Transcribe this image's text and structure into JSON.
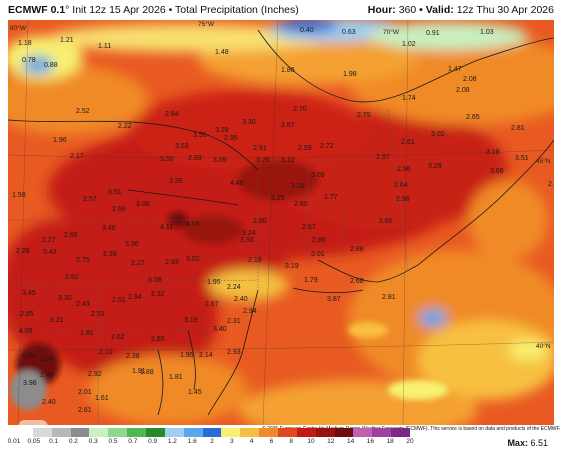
{
  "header": {
    "model": "ECMWF 0.1",
    "degree": "°",
    "run_info": "Init 12z 15 Apr 2026 • Total Precipitation (Inches)",
    "hour_label": "Hour:",
    "hour": "360",
    "valid_label": "• Valid:",
    "valid": "12z Thu 30 Apr 2026"
  },
  "copyright": "© 2026 European Centre for Medium-Range Weather Forecasts (ECMWF). This service is based on data and products of the ECMWF.",
  "legend": {
    "ticks": [
      "0.01",
      "0.05",
      "0.1",
      "0.2",
      "0.3",
      "0.5",
      "0.7",
      "0.9",
      "1.2",
      "1.6",
      "2",
      "3",
      "4",
      "6",
      "8",
      "10",
      "12",
      "14",
      "16",
      "18",
      "20"
    ],
    "colors": [
      "#ffffff",
      "#d9d9d9",
      "#b8b8b8",
      "#8c8c8c",
      "#c8f0c0",
      "#90d890",
      "#50b850",
      "#2a8a2a",
      "#9ecef0",
      "#5aa6e8",
      "#2a6ad8",
      "#f8f070",
      "#f4c040",
      "#f08a28",
      "#e04820",
      "#c41a14",
      "#9a1210",
      "#6e0c0c",
      "#c060b0",
      "#a040a0",
      "#7a2a8a"
    ]
  },
  "max": {
    "label": "Max:",
    "value": "6.51"
  },
  "coords": {
    "lat45": "45°N",
    "lat40": "40°N",
    "lon75": "75°W",
    "lon70": "70°W",
    "lon80": "80°W"
  },
  "map_values": [
    {
      "t": "1.18",
      "c": "#333"
    },
    {
      "t": "1.21",
      "c": "#333"
    },
    {
      "t": "1.11",
      "c": "#333"
    },
    {
      "t": "0.78",
      "c": "#333"
    },
    {
      "t": "0.88",
      "c": "#333"
    },
    {
      "t": "1.48",
      "c": "#333"
    },
    {
      "t": "0.40",
      "c": "#333"
    },
    {
      "t": "0.63",
      "c": "#333"
    },
    {
      "t": "1.02",
      "c": "#333"
    },
    {
      "t": "0.91",
      "c": "#333"
    },
    {
      "t": "1.03",
      "c": "#333"
    },
    {
      "t": "1.86",
      "c": "#333"
    },
    {
      "t": "1.98",
      "c": "#333"
    },
    {
      "t": "1.47",
      "c": "#333"
    },
    {
      "t": "2.08",
      "c": "#333"
    },
    {
      "t": "2.08",
      "c": "#333"
    },
    {
      "t": "1.74",
      "c": "#333"
    },
    {
      "t": "2.52",
      "c": "#333"
    },
    {
      "t": "2.84",
      "c": "#333"
    },
    {
      "t": "2.70",
      "c": "#333"
    },
    {
      "t": "2.75",
      "c": "#333"
    },
    {
      "t": "2.65",
      "c": "#333"
    },
    {
      "t": "2.22",
      "c": "#333"
    },
    {
      "t": "3.30",
      "c": "#333"
    },
    {
      "t": "2.87",
      "c": "#333"
    },
    {
      "t": "3.28",
      "c": "#333"
    },
    {
      "t": "3.55",
      "c": "#333"
    },
    {
      "t": "3.02",
      "c": "#333"
    },
    {
      "t": "2.81",
      "c": "#333"
    },
    {
      "t": "1.96",
      "c": "#333"
    },
    {
      "t": "3.53",
      "c": "#333"
    },
    {
      "t": "2.95",
      "c": "#333"
    },
    {
      "t": "2.91",
      "c": "#333"
    },
    {
      "t": "2.59",
      "c": "#333"
    },
    {
      "t": "2.72",
      "c": "#333"
    },
    {
      "t": "2.61",
      "c": "#333"
    },
    {
      "t": "2.17",
      "c": "#333"
    },
    {
      "t": "3.50",
      "c": "#333"
    },
    {
      "t": "2.99",
      "c": "#333"
    },
    {
      "t": "3.09",
      "c": "#333"
    },
    {
      "t": "3.26",
      "c": "#333"
    },
    {
      "t": "3.12",
      "c": "#333"
    },
    {
      "t": "2.97",
      "c": "#333"
    },
    {
      "t": "2.96",
      "c": "#333"
    },
    {
      "t": "3.18",
      "c": "#333"
    },
    {
      "t": "3.51",
      "c": "#333"
    },
    {
      "t": "3.29",
      "c": "#333"
    },
    {
      "t": "3.68",
      "c": "#333"
    },
    {
      "t": "3.39",
      "c": "#333"
    },
    {
      "t": "4.46",
      "c": "#333"
    },
    {
      "t": "3.09",
      "c": "#333"
    },
    {
      "t": "3.16",
      "c": "#333"
    },
    {
      "t": "2.64",
      "c": "#333"
    },
    {
      "t": "2.67",
      "c": "#333"
    },
    {
      "t": "1.58",
      "c": "#333"
    },
    {
      "t": "3.51",
      "c": "#333"
    },
    {
      "t": "2.57",
      "c": "#333"
    },
    {
      "t": "2.69",
      "c": "#333"
    },
    {
      "t": "3.06",
      "c": "#333"
    },
    {
      "t": "3.25",
      "c": "#333"
    },
    {
      "t": "2.77",
      "c": "#333"
    },
    {
      "t": "2.80",
      "c": "#333"
    },
    {
      "t": "2.98",
      "c": "#333"
    },
    {
      "t": "2.66",
      "c": "#333"
    },
    {
      "t": "3.46",
      "c": "#333"
    },
    {
      "t": "4.11",
      "c": "#333"
    },
    {
      "t": "4.06",
      "c": "#333"
    },
    {
      "t": "2.80",
      "c": "#333"
    },
    {
      "t": "3.24",
      "c": "#333"
    },
    {
      "t": "2.67",
      "c": "#333"
    },
    {
      "t": "2.65",
      "c": "#333"
    },
    {
      "t": "2.27",
      "c": "#333"
    },
    {
      "t": "3.36",
      "c": "#333"
    },
    {
      "t": "3.93",
      "c": "#333"
    },
    {
      "t": "2.86",
      "c": "#333"
    },
    {
      "t": "2.88",
      "c": "#333"
    },
    {
      "t": "2.28",
      "c": "#333"
    },
    {
      "t": "3.43",
      "c": "#333"
    },
    {
      "t": "2.75",
      "c": "#333"
    },
    {
      "t": "2.38",
      "c": "#333"
    },
    {
      "t": "2.27",
      "c": "#333"
    },
    {
      "t": "2.93",
      "c": "#333"
    },
    {
      "t": "3.02",
      "c": "#333"
    },
    {
      "t": "2.19",
      "c": "#333"
    },
    {
      "t": "3.19",
      "c": "#333"
    },
    {
      "t": "3.01",
      "c": "#333"
    },
    {
      "t": "2.82",
      "c": "#333"
    },
    {
      "t": "3.08",
      "c": "#333"
    },
    {
      "t": "1.95",
      "c": "#333"
    },
    {
      "t": "2.24",
      "c": "#333"
    },
    {
      "t": "1.79",
      "c": "#333"
    },
    {
      "t": "2.68",
      "c": "#333"
    },
    {
      "t": "3.45",
      "c": "#333"
    },
    {
      "t": "3.30",
      "c": "#333"
    },
    {
      "t": "2.43",
      "c": "#333"
    },
    {
      "t": "2.51",
      "c": "#333"
    },
    {
      "t": "2.94",
      "c": "#333"
    },
    {
      "t": "2.32",
      "c": "#333"
    },
    {
      "t": "2.40",
      "c": "#333"
    },
    {
      "t": "3.87",
      "c": "#333"
    },
    {
      "t": "2.81",
      "c": "#333"
    },
    {
      "t": "2.85",
      "c": "#333"
    },
    {
      "t": "3.21",
      "c": "#333"
    },
    {
      "t": "2.53",
      "c": "#333"
    },
    {
      "t": "3.19",
      "c": "#333"
    },
    {
      "t": "2.67",
      "c": "#333"
    },
    {
      "t": "2.94",
      "c": "#333"
    },
    {
      "t": "2.31",
      "c": "#333"
    },
    {
      "t": "4.09",
      "c": "#333"
    },
    {
      "t": "1.81",
      "c": "#333"
    },
    {
      "t": "2.62",
      "c": "#333"
    },
    {
      "t": "2.65",
      "c": "#333"
    },
    {
      "t": "3.40",
      "c": "#333"
    },
    {
      "t": "5.34",
      "c": "#333"
    },
    {
      "t": "3.00",
      "c": "#333"
    },
    {
      "t": "2.10",
      "c": "#333"
    },
    {
      "t": "2.38",
      "c": "#333"
    },
    {
      "t": "1.95",
      "c": "#333"
    },
    {
      "t": "2.14",
      "c": "#333"
    },
    {
      "t": "2.93",
      "c": "#333"
    },
    {
      "t": "2.46",
      "c": "#333"
    },
    {
      "t": "2.92",
      "c": "#333"
    },
    {
      "t": "1.91",
      "c": "#333"
    },
    {
      "t": "1.88",
      "c": "#333"
    },
    {
      "t": "1.81",
      "c": "#333"
    },
    {
      "t": "3.98",
      "c": "#333"
    },
    {
      "t": "2.40",
      "c": "#333"
    },
    {
      "t": "2.01",
      "c": "#333"
    },
    {
      "t": "1.61",
      "c": "#333"
    },
    {
      "t": "2.61",
      "c": "#333"
    },
    {
      "t": "1.45",
      "c": "#333"
    }
  ]
}
